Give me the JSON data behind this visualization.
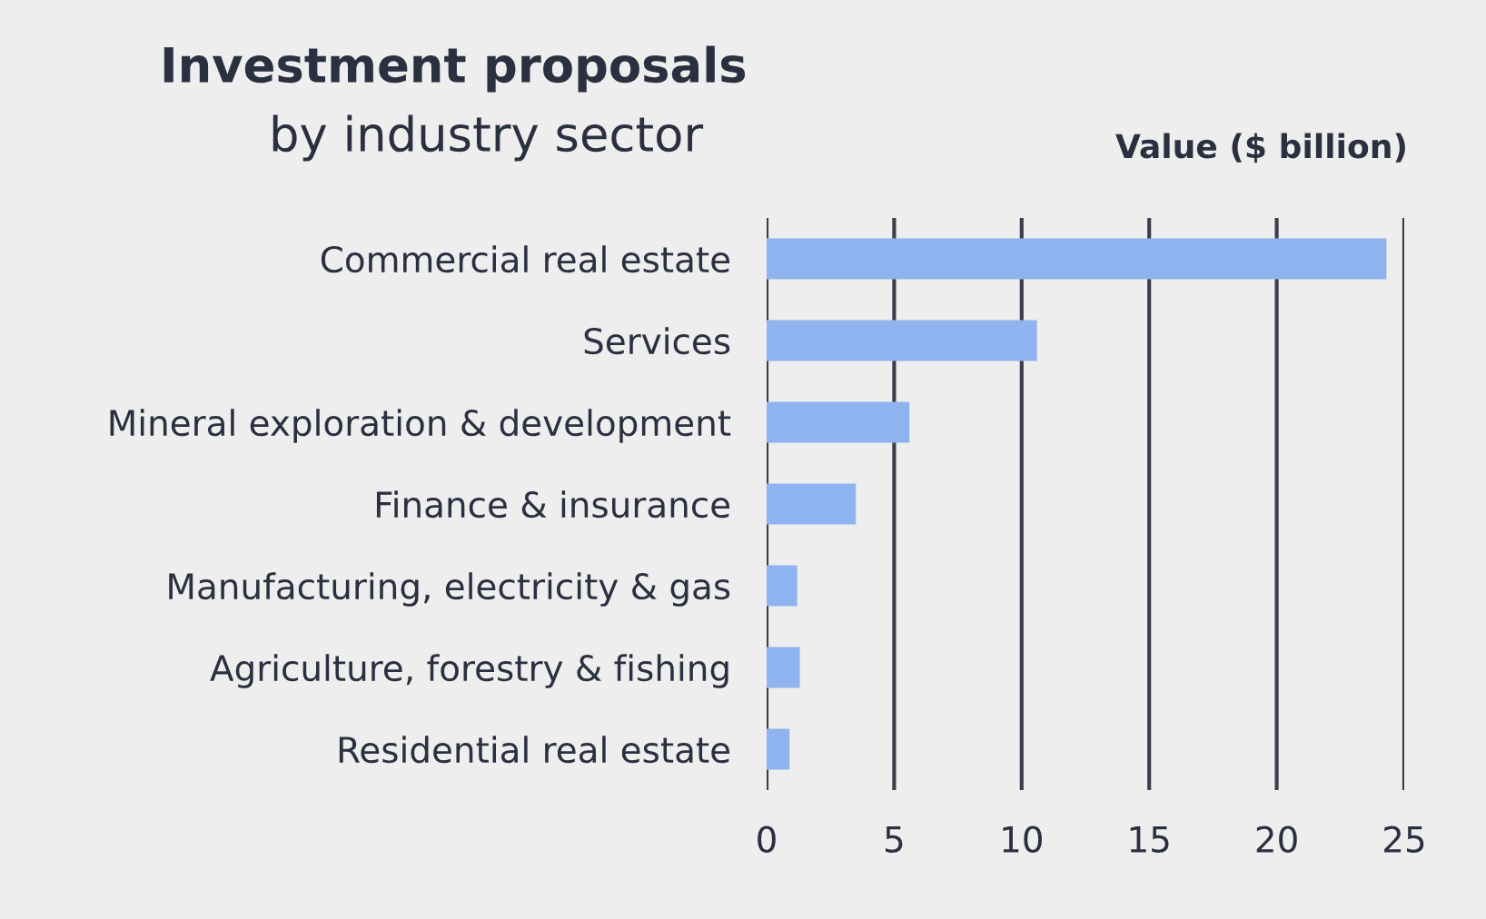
{
  "chart_data": {
    "type": "bar",
    "orientation": "horizontal",
    "title": "Investment proposals",
    "subtitle": "by industry sector",
    "xlabel": "Value ($ billion)",
    "categories": [
      "Commercial real estate",
      "Services",
      "Mineral exploration & development",
      "Finance & insurance",
      "Manufacturing, electricity & gas",
      "Agriculture, forestry & fishing",
      "Residential real estate"
    ],
    "values": [
      24.3,
      10.6,
      5.6,
      3.5,
      1.2,
      1.3,
      0.9
    ],
    "color": "#8fb3ee",
    "xlim": [
      0,
      25
    ],
    "xticks": [
      0,
      5,
      10,
      15,
      20,
      25
    ],
    "grid": "x"
  }
}
